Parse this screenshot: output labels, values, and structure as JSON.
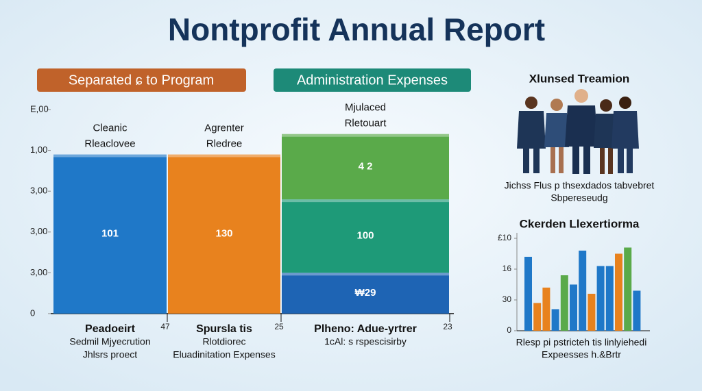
{
  "header": {
    "title": "Nontprofit Annual Report",
    "pills": [
      {
        "text": "Separated ɕ to Program",
        "color": "#c0622a"
      },
      {
        "text": "Administration Expenses",
        "color": "#1d8a78"
      }
    ]
  },
  "chart_data": [
    {
      "type": "stacked-bar",
      "categories": [
        [
          "Cleanic",
          "Rleaclovee"
        ],
        [
          "Agrenter",
          "Rledree"
        ],
        [
          "Mjulaced",
          "Rletouart"
        ]
      ],
      "series": [
        {
          "colors": [
            "#1f78c8",
            "#e8821e",
            "#1e64b4"
          ],
          "values": [
            3.9,
            3.9,
            1.0
          ]
        },
        {
          "colors": [
            "#1e9a78",
            "#1e9a78",
            "#1e9a78"
          ],
          "values": [
            null,
            null,
            1.8
          ]
        },
        {
          "colors": [
            "#5aaa4a",
            "#5aaa4a",
            "#5aaa4a"
          ],
          "values": [
            null,
            null,
            1.6
          ]
        }
      ],
      "annotations": [
        "101",
        "130",
        "₩29",
        "100",
        "4 2"
      ],
      "ylim": [
        0,
        5
      ],
      "yticks": [
        0,
        {
          "value": 1,
          "label": "3,00"
        },
        {
          "value": 2,
          "label": "3,00"
        },
        {
          "value": 3,
          "label": "3,00"
        },
        {
          "value": 4,
          "label": "1,00"
        },
        {
          "value": 5,
          "label": "E,00"
        }
      ],
      "edge_labels": [
        47,
        25,
        23
      ],
      "column_notes": [
        [
          "Peadoeirt",
          "Sedmil Mjyecrution",
          "Jhlsrs proect"
        ],
        [
          "Spursla tis",
          "Rlotdiorec",
          "Eluadinitation Expenses"
        ],
        [
          "Plheno: Adue-yrtrer",
          "1cAl: s rspescisirby"
        ]
      ]
    },
    {
      "type": "bar",
      "title": "Ckerden Llexertiorma",
      "values": [
        2.4,
        0.9,
        1.4,
        0.7,
        1.8,
        1.5,
        2.6,
        1.2,
        2.1,
        2.1,
        2.5,
        2.7,
        1.3
      ],
      "colors": [
        "#1f78c8",
        "#e8821e",
        "#e8821e",
        "#1f78c8",
        "#5aaa4a",
        "#1f78c8",
        "#1f78c8",
        "#e8821e",
        "#1f78c8",
        "#1f78c8",
        "#e8821e",
        "#5aaa4a",
        "#1f78c8"
      ],
      "ylim": [
        0,
        3
      ],
      "yticks": [
        0,
        {
          "value": 1,
          "label": "30"
        },
        {
          "value": 2,
          "label": "16"
        },
        {
          "value": 3,
          "label": "£10"
        }
      ],
      "caption": [
        "Rlesp pi pstricteh tis linlyiehedi",
        "Expeesses h.&Brtr"
      ]
    }
  ],
  "team": {
    "title": "Xlunsed Treamion",
    "caption": [
      "Jichss Flus p thsexdados tabvebret",
      "Sbpereseudg"
    ]
  }
}
